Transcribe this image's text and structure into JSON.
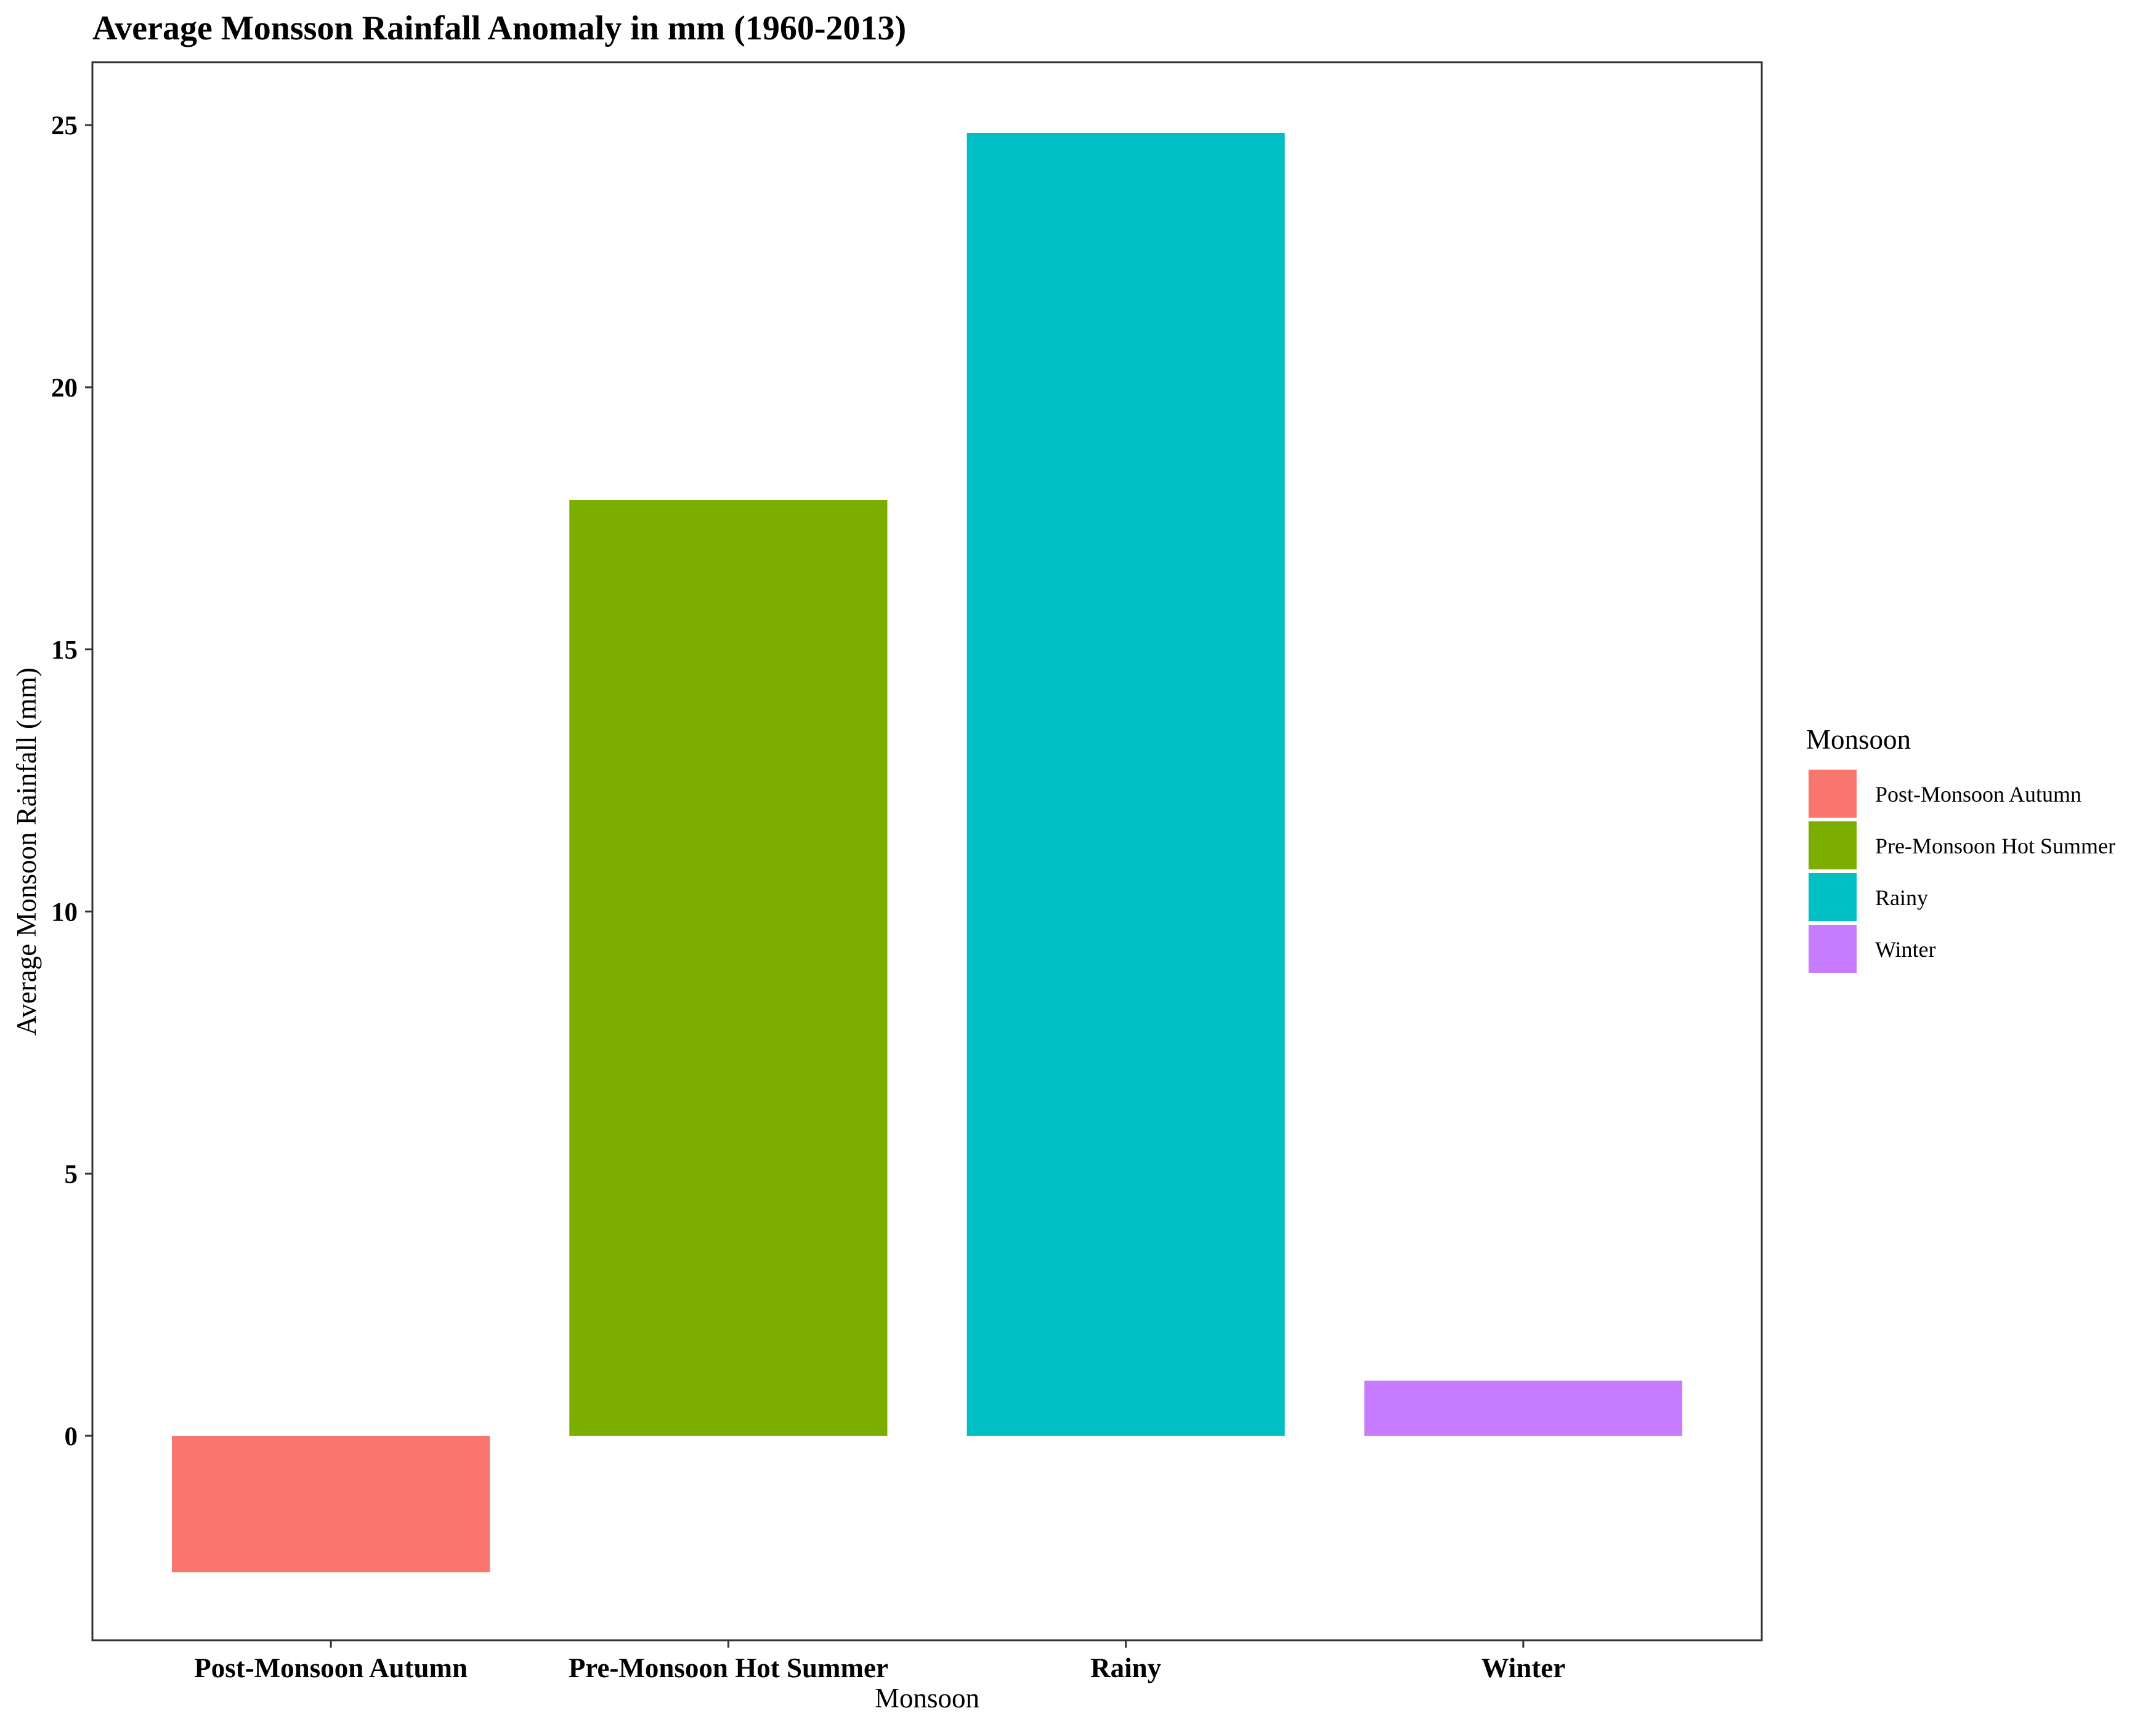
{
  "chart_data": {
    "type": "bar",
    "title": "Average Monsson Rainfall Anomaly in mm (1960-2013)",
    "xlabel": "Monsoon",
    "ylabel": "Average Monsoon Rainfall (mm)",
    "categories": [
      "Post-Monsoon Autumn",
      "Pre-Monsoon Hot Summer",
      "Rainy",
      "Winter"
    ],
    "values": [
      -2.6,
      17.85,
      24.85,
      1.05
    ],
    "colors": [
      "#F8766D",
      "#7CAE00",
      "#00BFC4",
      "#C77CFF"
    ],
    "ylim": [
      -3.9,
      26.2
    ],
    "yticks": [
      0,
      5,
      10,
      15,
      20,
      25
    ],
    "grid": false,
    "legend": {
      "title": "Monsoon",
      "placement": "right",
      "entries": [
        "Post-Monsoon Autumn",
        "Pre-Monsoon Hot Summer",
        "Rainy",
        "Winter"
      ]
    }
  }
}
